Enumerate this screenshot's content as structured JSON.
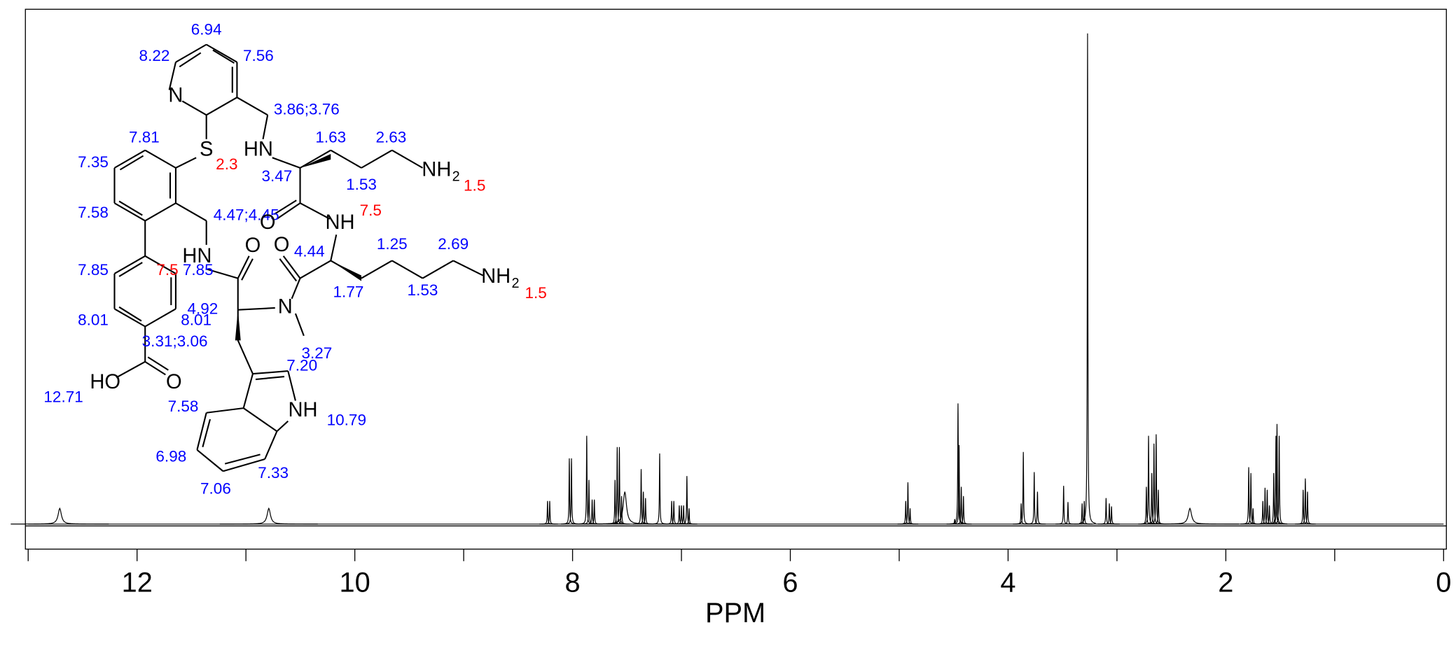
{
  "chart_data": {
    "type": "spectrum",
    "xlabel": "PPM",
    "color": "#000000",
    "x": [
      12.71,
      10.79,
      8.23,
      8.21,
      8.03,
      8.01,
      7.87,
      7.85,
      7.82,
      7.8,
      7.61,
      7.59,
      7.57,
      7.55,
      7.52,
      7.37,
      7.35,
      7.33,
      7.2,
      7.09,
      7.07,
      7.02,
      7.0,
      6.98,
      6.95,
      6.93,
      4.94,
      4.92,
      4.9,
      4.49,
      4.46,
      4.45,
      4.43,
      4.41,
      3.88,
      3.86,
      3.76,
      3.73,
      3.49,
      3.45,
      3.32,
      3.3,
      3.27,
      3.1,
      3.07,
      3.05,
      2.73,
      2.71,
      2.68,
      2.66,
      2.64,
      2.62,
      2.33,
      1.79,
      1.77,
      1.75,
      1.66,
      1.64,
      1.62,
      1.6,
      1.56,
      1.54,
      1.53,
      1.51,
      1.29,
      1.27,
      1.25
    ],
    "values": [
      3.2,
      3.2,
      4.7,
      4.7,
      13.4,
      13.4,
      18,
      9,
      5,
      5,
      9,
      15.7,
      15.7,
      5.7,
      6.6,
      11.2,
      6.6,
      5.3,
      14.4,
      4.7,
      4.7,
      3.8,
      3.8,
      3.8,
      9.8,
      3.2,
      4.7,
      8.5,
      3.2,
      1,
      24.6,
      16.1,
      7.6,
      5.7,
      4.2,
      14.7,
      10.6,
      6.6,
      7.8,
      4.5,
      4.2,
      4.7,
      100,
      5.3,
      4.2,
      3.6,
      7.6,
      18,
      10.4,
      16.4,
      18.3,
      7.0,
      3.2,
      11.6,
      10.4,
      3.2,
      4.7,
      7.4,
      7.0,
      3.8,
      10.4,
      18,
      20.4,
      18,
      7,
      9.3,
      6.6
    ],
    "xlim": [
      13,
      0
    ],
    "ylim": [
      0,
      100
    ],
    "xticks": [
      12,
      10,
      8,
      6,
      4,
      2,
      0
    ],
    "xminorticks": [
      13,
      11,
      9,
      7,
      5,
      3,
      1
    ],
    "annotations": {
      "shift_color": "#0000ff",
      "exchange_color": "#ff0000",
      "shift_labels": [
        "6.94",
        "8.22",
        "7.56",
        "3.86;3.76",
        "7.81",
        "1.63",
        "2.63",
        "7.35",
        "3.47",
        "1.53",
        "7.58",
        "4.47;4.45",
        "4.44",
        "1.25",
        "2.69",
        "7.85",
        "7.85",
        "1.77",
        "1.53",
        "8.01",
        "4.92",
        "8.01",
        "3.31;3.06",
        "3.27",
        "7.20",
        "12.71",
        "7.58",
        "10.79",
        "6.98",
        "7.33",
        "7.06"
      ],
      "exchange_labels": [
        "2.3",
        "1.5",
        "7.5",
        "7.5",
        "1.5"
      ],
      "atom_labels": [
        "N",
        "S",
        "HN",
        "NH",
        "2",
        "O",
        "NH",
        "HN",
        "O",
        "O",
        "NH",
        "2",
        "N",
        "HO",
        "O",
        "NH"
      ]
    }
  }
}
